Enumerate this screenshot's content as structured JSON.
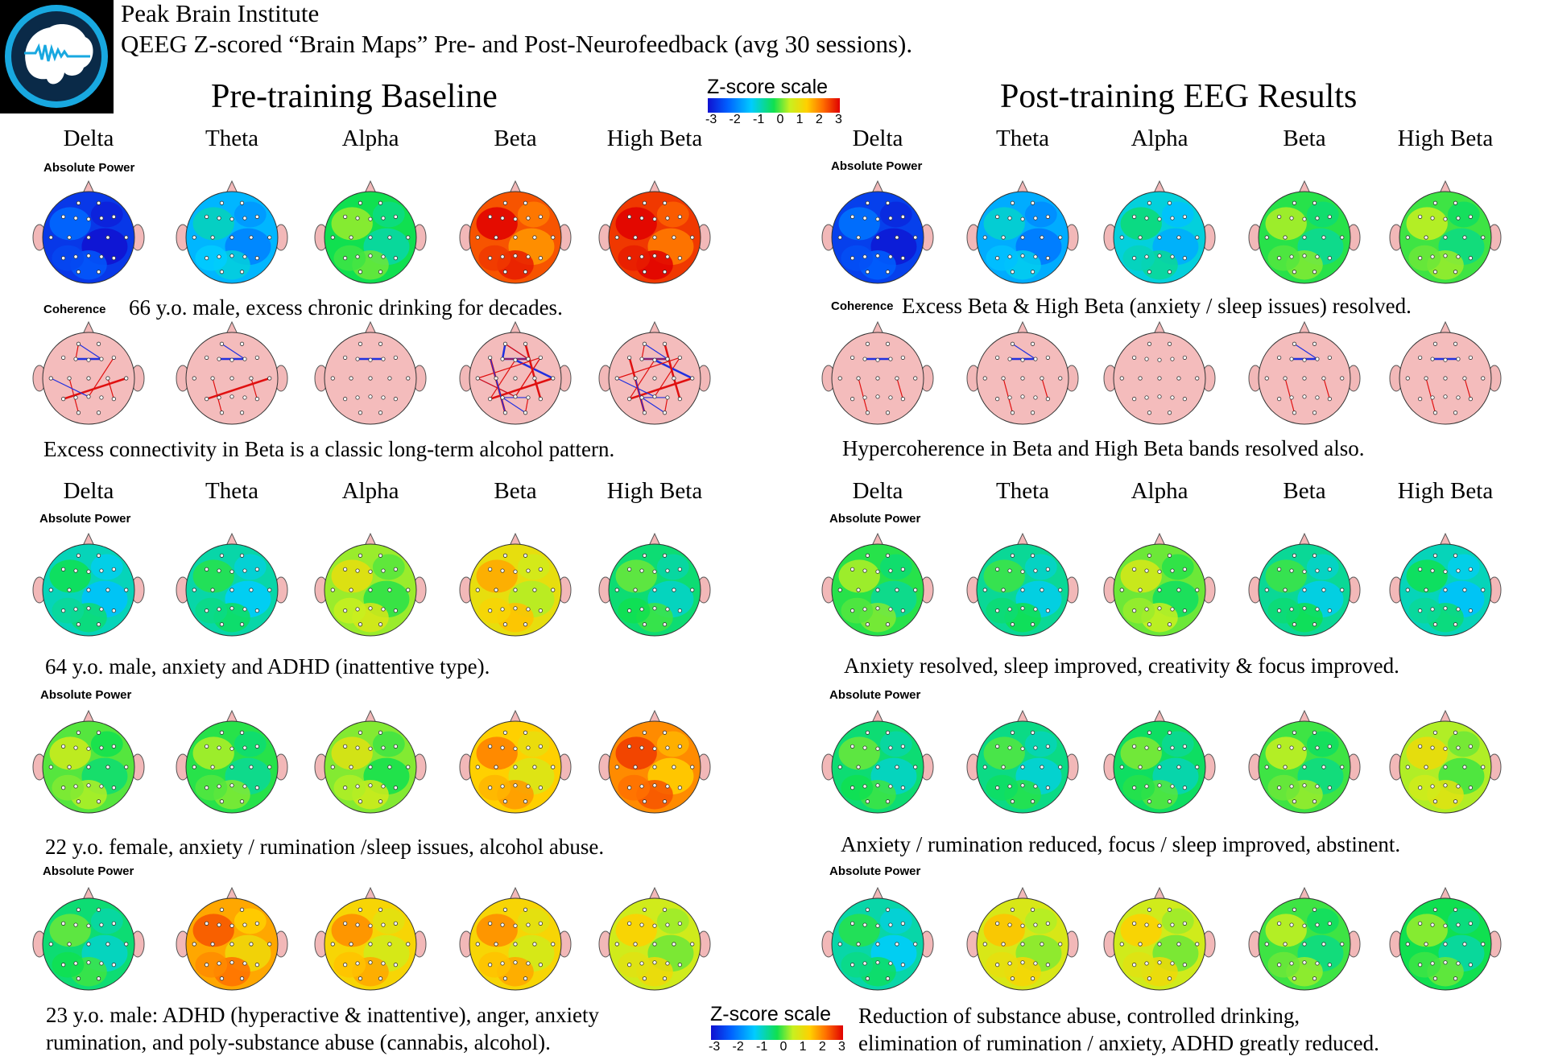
{
  "header": {
    "institute": "Peak Brain Institute",
    "subtitle": "QEEG Z-scored “Brain Maps” Pre- and Post-Neurofeedback (avg 30 sessions)."
  },
  "panels": {
    "pre_title": "Pre-training Baseline",
    "post_title": "Post-training EEG Results"
  },
  "bands": [
    "Delta",
    "Theta",
    "Alpha",
    "Beta",
    "High Beta"
  ],
  "labels": {
    "absolute_power": "Absolute Power",
    "coherence": "Coherence"
  },
  "z_scale": {
    "title": "Z-score scale",
    "ticks": [
      "-3",
      "-2",
      "-1",
      "0",
      "1",
      "2",
      "3"
    ]
  },
  "captions": {
    "case1_pre": "66 y.o. male, excess chronic drinking for decades.",
    "case1_post": "Excess Beta & High Beta (anxiety / sleep issues) resolved.",
    "case1_coh_pre": "Excess connectivity in Beta is a classic long-term alcohol pattern.",
    "case1_coh_post": "Hypercoherence in Beta and High Beta bands resolved also.",
    "case2_pre": "64 y.o. male, anxiety and ADHD (inattentive type).",
    "case2_post": "Anxiety resolved, sleep improved, creativity & focus improved.",
    "case3_pre": "22 y.o. female, anxiety / rumination /sleep issues, alcohol abuse.",
    "case3_post": "Anxiety / rumination reduced, focus / sleep improved, abstinent.",
    "case4_pre_line1": "23 y.o. male: ADHD (hyperactive & inattentive), anger, anxiety",
    "case4_pre_line2": "rumination,  and poly-substance abuse (cannabis, alcohol).",
    "case4_post_line1": "Reduction of substance abuse, controlled drinking,",
    "case4_post_line2": "elimination of rumination / anxiety, ADHD greatly reduced."
  },
  "maps": {
    "case1_pre": [
      -2.5,
      -1.2,
      0.0,
      2.4,
      2.6
    ],
    "case1_post": [
      -2.4,
      -1.3,
      -0.8,
      0.1,
      0.2
    ],
    "case2_pre": [
      -0.6,
      -0.5,
      0.6,
      1.2,
      -0.2
    ],
    "case2_post": [
      0.1,
      -0.4,
      0.4,
      -0.4,
      -0.6
    ],
    "case3_pre": [
      0.3,
      0.1,
      0.5,
      1.5,
      2.0
    ],
    "case3_post": [
      -0.2,
      -0.3,
      -0.1,
      0.2,
      0.7
    ],
    "case4_pre": [
      -0.2,
      1.8,
      1.4,
      1.4,
      0.9
    ],
    "case4_post": [
      -0.5,
      1.0,
      0.9,
      0.2,
      0.0
    ],
    "coherence_pre_lines": [
      8,
      5,
      1,
      30,
      22
    ],
    "coherence_post_lines": [
      3,
      4,
      0,
      4,
      3
    ]
  }
}
